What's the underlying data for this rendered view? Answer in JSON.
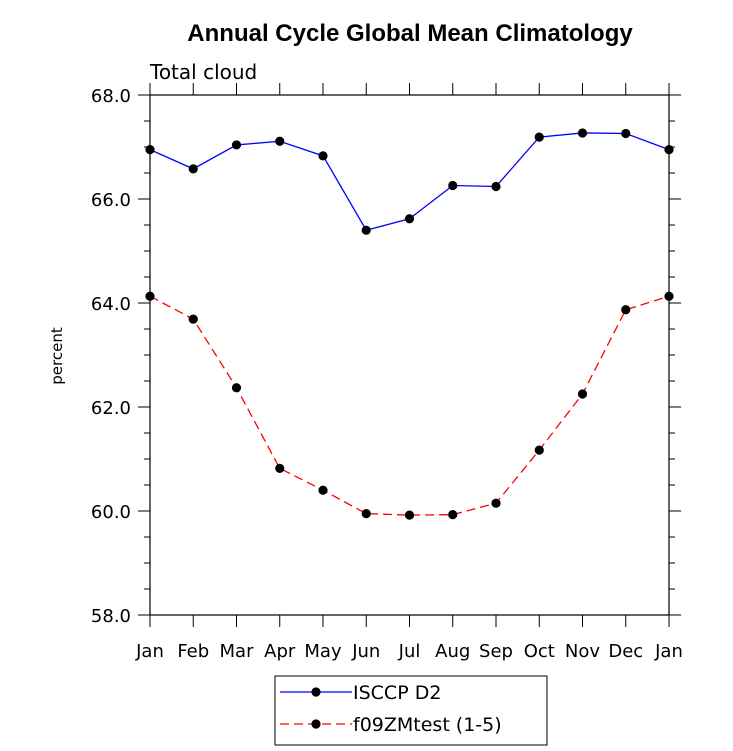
{
  "chart_data": {
    "type": "line",
    "title": "Annual Cycle Global Mean Climatology",
    "subtitle": "Total cloud",
    "xlabel": "",
    "ylabel": "percent",
    "categories": [
      "Jan",
      "Feb",
      "Mar",
      "Apr",
      "May",
      "Jun",
      "Jul",
      "Aug",
      "Sep",
      "Oct",
      "Nov",
      "Dec",
      "Jan"
    ],
    "ylim": [
      58.0,
      68.0
    ],
    "yticks": [
      "58.0",
      "60.0",
      "62.0",
      "64.0",
      "66.0",
      "68.0"
    ],
    "grid": false,
    "legend": "bottom-center",
    "series": [
      {
        "name": "ISCCP D2",
        "color": "#0000ff",
        "dash": "solid",
        "values": [
          66.95,
          66.58,
          67.04,
          67.11,
          66.83,
          65.4,
          65.62,
          66.26,
          66.24,
          67.19,
          67.27,
          67.26,
          66.95
        ]
      },
      {
        "name": "f09ZMtest (1-5)",
        "color": "#ff0000",
        "dash": "dashed",
        "values": [
          64.13,
          63.69,
          62.37,
          60.82,
          60.4,
          59.95,
          59.92,
          59.93,
          60.15,
          61.17,
          62.25,
          63.87,
          64.13
        ]
      }
    ]
  }
}
